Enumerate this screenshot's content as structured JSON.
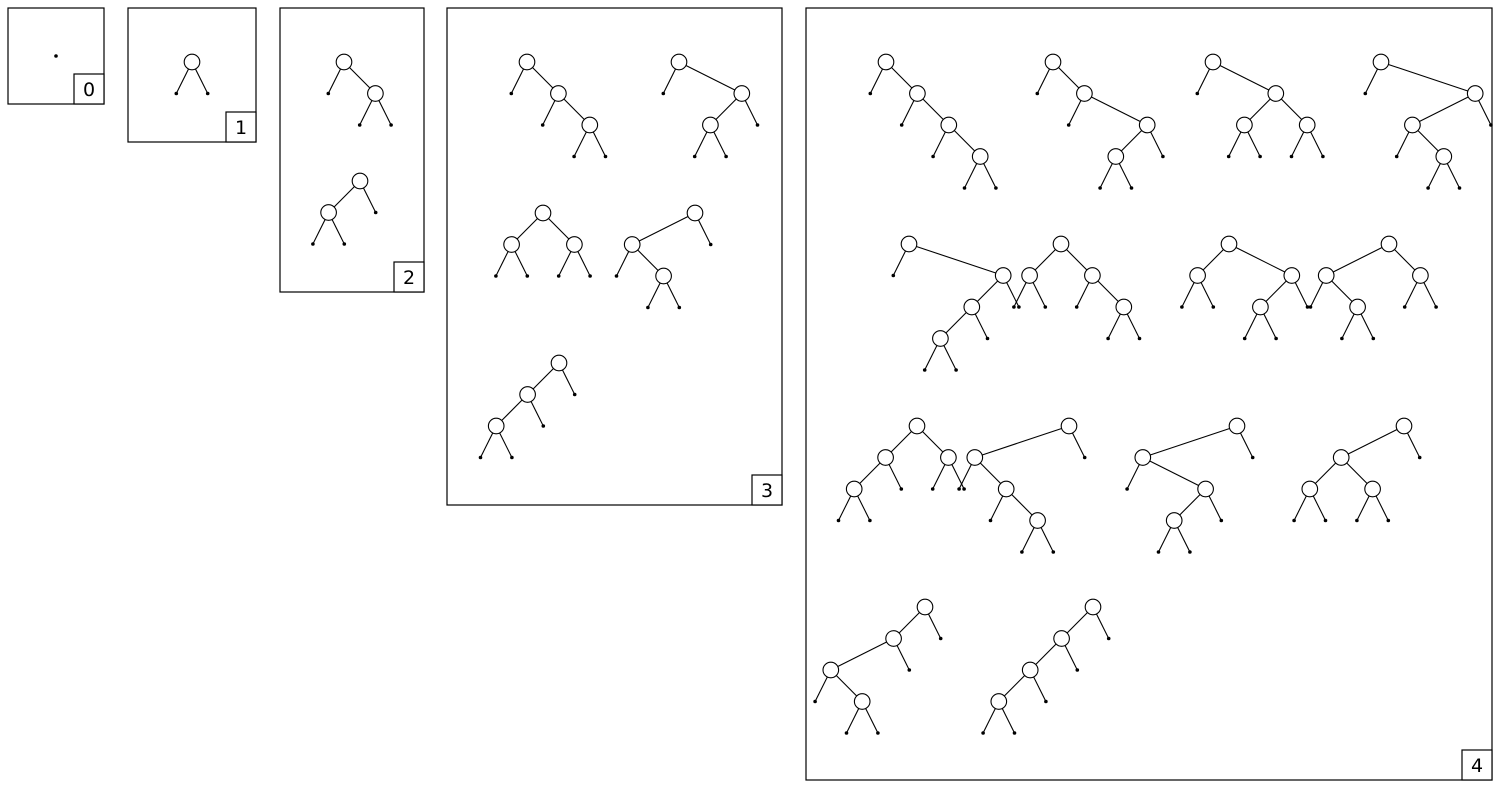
{
  "panels": [
    {
      "label": "0",
      "trees": [
        "."
      ]
    },
    {
      "label": "1",
      "trees": [
        "(..)"
      ]
    },
    {
      "label": "2",
      "trees": [
        "(.(..))",
        "((..).)"
      ]
    },
    {
      "label": "3",
      "trees": [
        "(.(.(..)))",
        "(.((..).))",
        "((..)(..))",
        "((.(..)).)",
        "(((..).).)"
      ]
    },
    {
      "label": "4",
      "trees": [
        "(.(.(.(..))))",
        "(.(.((..).)))",
        "(.((..)(..)))",
        "(.((.(..)).))",
        "(.(((..).).))",
        "((..)(.(..)))",
        "((..)((..).))",
        "((.(..))(..))",
        "(((..).)(..))",
        "((.(.(..))).)",
        "((.((..).)).)",
        "(((..)(..)).)",
        "(((.(..)).).)",
        "((((..).).).)"
      ]
    }
  ]
}
